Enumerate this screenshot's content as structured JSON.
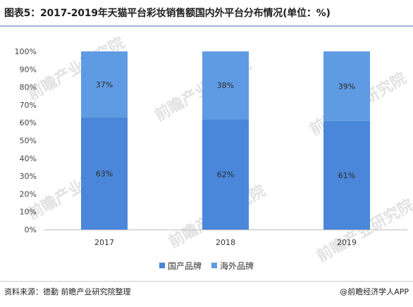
{
  "title": "图表5：2017-2019年天猫平台彩妆销售额国内外平台分布情况(单位：%)",
  "colors": {
    "domestic": "#4a86d9",
    "foreign": "#5f9be3",
    "accent_rule": "#9bb7d8"
  },
  "legend": [
    {
      "label": "国产品牌",
      "color": "#4a86d9"
    },
    {
      "label": "海外品牌",
      "color": "#5f9be3"
    }
  ],
  "source": "资料来源：德勤 前瞻产业研究院整理",
  "credit": "@前瞻经济学人APP",
  "watermark": "前瞻产业研究院",
  "chart_data": {
    "type": "bar",
    "stacked": true,
    "categories": [
      "2017",
      "2018",
      "2019"
    ],
    "series": [
      {
        "name": "国产品牌",
        "values": [
          63,
          62,
          61
        ],
        "labels": [
          "63%",
          "62%",
          "61%"
        ],
        "color": "#4a86d9"
      },
      {
        "name": "海外品牌",
        "values": [
          37,
          38,
          39
        ],
        "labels": [
          "37%",
          "38%",
          "39%"
        ],
        "color": "#5f9be3"
      }
    ],
    "yticks": [
      "0%",
      "10%",
      "20%",
      "30%",
      "40%",
      "50%",
      "60%",
      "70%",
      "80%",
      "90%",
      "100%"
    ],
    "ylim": [
      0,
      100
    ],
    "grid": false,
    "legend_position": "bottom"
  }
}
